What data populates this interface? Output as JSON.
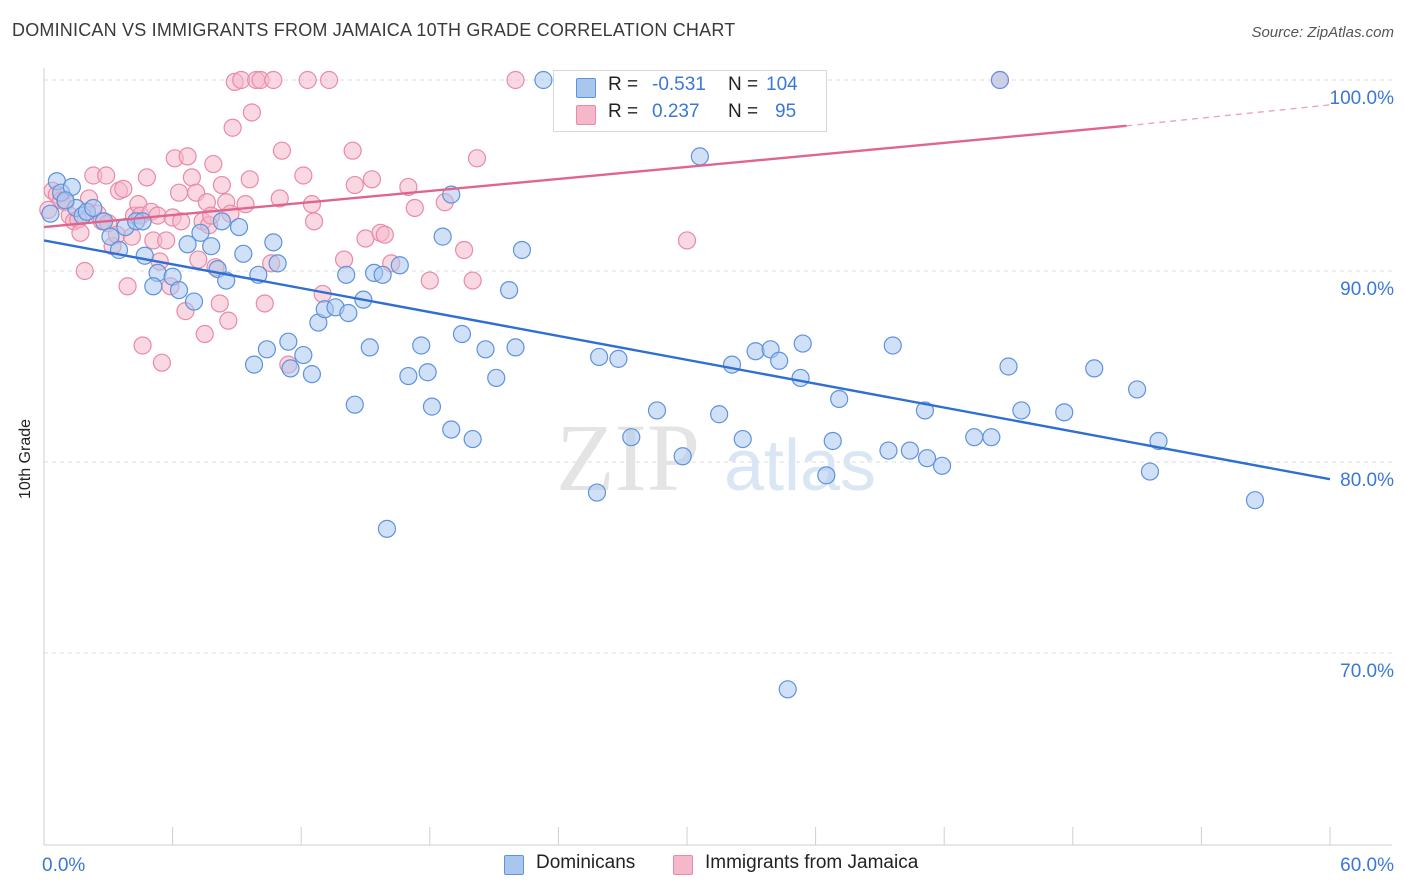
{
  "header": {
    "title": "DOMINICAN VS IMMIGRANTS FROM JAMAICA 10TH GRADE CORRELATION CHART",
    "source": "Source: ZipAtlas.com"
  },
  "legend": {
    "r_label": "R =",
    "n_label": "N =",
    "series": [
      {
        "r": "-0.531",
        "n": "104"
      },
      {
        "r": "0.237",
        "n": "95"
      }
    ]
  },
  "watermark": {
    "zip": "ZIP",
    "atlas": "atlas"
  },
  "colors": {
    "blue_fill": "#a9c6ee",
    "blue_stroke": "#5e93dd",
    "blue_line": "#2f6fd3",
    "pink_fill": "#f5b8ca",
    "pink_stroke": "#e98aa8",
    "pink_line": "#e0658e",
    "tick_label": "#3a78d6",
    "grid": "#dddddd"
  },
  "chart_data": {
    "type": "scatter",
    "title": "DOMINICAN VS IMMIGRANTS FROM JAMAICA 10TH GRADE CORRELATION CHART",
    "xlabel": "",
    "ylabel": "10th Grade",
    "xlim": [
      0,
      60
    ],
    "ylim": [
      61,
      101
    ],
    "x_tick_labels": [
      {
        "value": 0,
        "label": "0.0%"
      },
      {
        "value": 60,
        "label": "60.0%"
      }
    ],
    "y_tick_labels": [
      {
        "value": 100,
        "label": "100.0%"
      },
      {
        "value": 90,
        "label": "90.0%"
      },
      {
        "value": 80,
        "label": "80.0%"
      },
      {
        "value": 70,
        "label": "70.0%"
      }
    ],
    "grid": true,
    "legend_position": "top-center",
    "series": [
      {
        "name": "Dominicans",
        "color": "#5e93dd",
        "trend": {
          "x0": 0,
          "y0": 91.6,
          "x1": 60,
          "y1": 79.1
        },
        "points": [
          [
            0.6,
            94.7
          ],
          [
            0.8,
            94.1
          ],
          [
            1.3,
            94.4
          ],
          [
            1.5,
            93.3
          ],
          [
            1.8,
            92.9
          ],
          [
            2.0,
            93.1
          ],
          [
            2.3,
            93.3
          ],
          [
            2.8,
            92.6
          ],
          [
            3.1,
            91.8
          ],
          [
            3.8,
            92.3
          ],
          [
            4.3,
            92.6
          ],
          [
            4.6,
            92.6
          ],
          [
            3.5,
            91.1
          ],
          [
            4.7,
            90.8
          ],
          [
            5.3,
            89.9
          ],
          [
            6.0,
            89.7
          ],
          [
            5.1,
            89.2
          ],
          [
            6.3,
            89.0
          ],
          [
            7.0,
            88.4
          ],
          [
            6.7,
            91.4
          ],
          [
            7.3,
            92.0
          ],
          [
            7.8,
            91.3
          ],
          [
            8.1,
            90.1
          ],
          [
            8.5,
            89.5
          ],
          [
            8.3,
            92.6
          ],
          [
            9.1,
            92.3
          ],
          [
            9.3,
            90.9
          ],
          [
            10.0,
            89.8
          ],
          [
            10.7,
            91.5
          ],
          [
            10.9,
            90.4
          ],
          [
            9.8,
            85.1
          ],
          [
            10.4,
            85.9
          ],
          [
            11.4,
            86.3
          ],
          [
            11.5,
            84.9
          ],
          [
            12.1,
            85.6
          ],
          [
            12.5,
            84.6
          ],
          [
            12.8,
            87.3
          ],
          [
            13.1,
            88.0
          ],
          [
            13.6,
            88.1
          ],
          [
            14.1,
            89.8
          ],
          [
            14.2,
            87.8
          ],
          [
            14.9,
            88.5
          ],
          [
            15.4,
            89.9
          ],
          [
            15.8,
            89.8
          ],
          [
            16.6,
            90.3
          ],
          [
            15.2,
            86.0
          ],
          [
            14.5,
            83.0
          ],
          [
            17.0,
            84.5
          ],
          [
            17.6,
            86.1
          ],
          [
            17.9,
            84.7
          ],
          [
            18.1,
            82.9
          ],
          [
            18.6,
            91.8
          ],
          [
            19.0,
            81.7
          ],
          [
            19.5,
            86.7
          ],
          [
            20.0,
            81.2
          ],
          [
            19.0,
            94.0
          ],
          [
            20.6,
            85.9
          ],
          [
            21.1,
            84.4
          ],
          [
            21.7,
            89.0
          ],
          [
            22.0,
            86.0
          ],
          [
            22.3,
            91.1
          ],
          [
            23.3,
            100.0
          ],
          [
            24.5,
            100.0
          ],
          [
            25.8,
            78.4
          ],
          [
            25.9,
            85.5
          ],
          [
            26.8,
            85.4
          ],
          [
            27.4,
            81.3
          ],
          [
            28.6,
            82.7
          ],
          [
            27.3,
            100.0
          ],
          [
            29.8,
            80.3
          ],
          [
            30.6,
            96.0
          ],
          [
            31.5,
            82.5
          ],
          [
            32.1,
            85.1
          ],
          [
            32.6,
            81.2
          ],
          [
            33.2,
            85.8
          ],
          [
            33.9,
            85.9
          ],
          [
            34.3,
            85.3
          ],
          [
            34.7,
            68.1
          ],
          [
            35.0,
            100.0
          ],
          [
            35.3,
            84.4
          ],
          [
            35.4,
            86.2
          ],
          [
            36.5,
            79.3
          ],
          [
            36.8,
            81.1
          ],
          [
            37.1,
            83.3
          ],
          [
            39.6,
            86.1
          ],
          [
            39.4,
            80.6
          ],
          [
            40.4,
            80.6
          ],
          [
            41.1,
            82.7
          ],
          [
            41.2,
            80.2
          ],
          [
            41.9,
            79.8
          ],
          [
            43.4,
            81.3
          ],
          [
            44.2,
            81.3
          ],
          [
            44.6,
            100.0
          ],
          [
            45.0,
            85.0
          ],
          [
            45.6,
            82.7
          ],
          [
            47.6,
            82.6
          ],
          [
            49.0,
            84.9
          ],
          [
            51.0,
            83.8
          ],
          [
            51.6,
            79.5
          ],
          [
            52.0,
            81.1
          ],
          [
            56.5,
            78.0
          ],
          [
            16.0,
            76.5
          ],
          [
            0.3,
            93.0
          ],
          [
            1.0,
            93.7
          ]
        ]
      },
      {
        "name": "Immigrants from Jamaica",
        "color": "#e98aa8",
        "trend": {
          "x0": 0,
          "y0": 92.3,
          "x1": 50.5,
          "y1": 97.6,
          "dashed_to": {
            "x": 60,
            "y": 98.7
          }
        },
        "points": [
          [
            0.4,
            94.2
          ],
          [
            0.6,
            94.0
          ],
          [
            0.8,
            93.7
          ],
          [
            1.0,
            93.6
          ],
          [
            1.2,
            92.9
          ],
          [
            1.4,
            92.6
          ],
          [
            1.6,
            92.7
          ],
          [
            1.7,
            92.0
          ],
          [
            1.9,
            90.0
          ],
          [
            2.1,
            93.8
          ],
          [
            2.3,
            95.0
          ],
          [
            2.5,
            93.0
          ],
          [
            2.7,
            92.6
          ],
          [
            2.9,
            95.0
          ],
          [
            3.0,
            92.5
          ],
          [
            3.2,
            91.3
          ],
          [
            3.4,
            91.9
          ],
          [
            3.5,
            94.2
          ],
          [
            3.7,
            94.3
          ],
          [
            3.9,
            89.2
          ],
          [
            4.1,
            91.8
          ],
          [
            4.2,
            92.9
          ],
          [
            4.4,
            93.5
          ],
          [
            4.5,
            92.9
          ],
          [
            4.6,
            86.1
          ],
          [
            4.8,
            94.9
          ],
          [
            5.0,
            93.1
          ],
          [
            5.1,
            91.6
          ],
          [
            5.3,
            92.9
          ],
          [
            5.4,
            90.5
          ],
          [
            5.5,
            85.2
          ],
          [
            5.7,
            91.6
          ],
          [
            5.9,
            89.2
          ],
          [
            6.0,
            92.8
          ],
          [
            6.1,
            95.9
          ],
          [
            6.3,
            94.1
          ],
          [
            6.4,
            92.6
          ],
          [
            6.6,
            87.9
          ],
          [
            6.7,
            96.0
          ],
          [
            6.9,
            94.9
          ],
          [
            7.1,
            94.1
          ],
          [
            7.2,
            90.6
          ],
          [
            7.4,
            92.6
          ],
          [
            7.5,
            86.7
          ],
          [
            7.6,
            93.6
          ],
          [
            7.7,
            92.4
          ],
          [
            7.8,
            92.9
          ],
          [
            7.9,
            95.6
          ],
          [
            8.0,
            90.2
          ],
          [
            8.2,
            88.3
          ],
          [
            8.3,
            94.5
          ],
          [
            8.5,
            93.6
          ],
          [
            8.6,
            87.4
          ],
          [
            8.7,
            93.0
          ],
          [
            8.8,
            97.5
          ],
          [
            8.9,
            99.9
          ],
          [
            9.2,
            100.0
          ],
          [
            9.4,
            93.5
          ],
          [
            9.6,
            94.8
          ],
          [
            9.7,
            98.3
          ],
          [
            9.9,
            100.0
          ],
          [
            10.1,
            100.0
          ],
          [
            10.3,
            88.3
          ],
          [
            10.6,
            90.4
          ],
          [
            10.7,
            100.0
          ],
          [
            11.0,
            93.8
          ],
          [
            11.1,
            96.3
          ],
          [
            11.4,
            85.1
          ],
          [
            12.1,
            95.0
          ],
          [
            12.3,
            100.0
          ],
          [
            12.5,
            93.5
          ],
          [
            12.6,
            92.6
          ],
          [
            13.0,
            88.8
          ],
          [
            13.3,
            100.0
          ],
          [
            14.0,
            90.6
          ],
          [
            14.5,
            94.5
          ],
          [
            14.4,
            96.3
          ],
          [
            15.0,
            91.7
          ],
          [
            15.3,
            94.8
          ],
          [
            15.7,
            92.0
          ],
          [
            15.9,
            91.9
          ],
          [
            16.2,
            90.4
          ],
          [
            17.0,
            94.4
          ],
          [
            17.3,
            93.3
          ],
          [
            18.0,
            89.5
          ],
          [
            18.7,
            93.6
          ],
          [
            19.6,
            91.1
          ],
          [
            20.0,
            89.5
          ],
          [
            20.2,
            95.9
          ],
          [
            22.0,
            100.0
          ],
          [
            27.0,
            100.0
          ],
          [
            27.6,
            100.0
          ],
          [
            30.0,
            91.6
          ],
          [
            44.6,
            100.0
          ],
          [
            0.2,
            93.2
          ]
        ]
      }
    ]
  }
}
